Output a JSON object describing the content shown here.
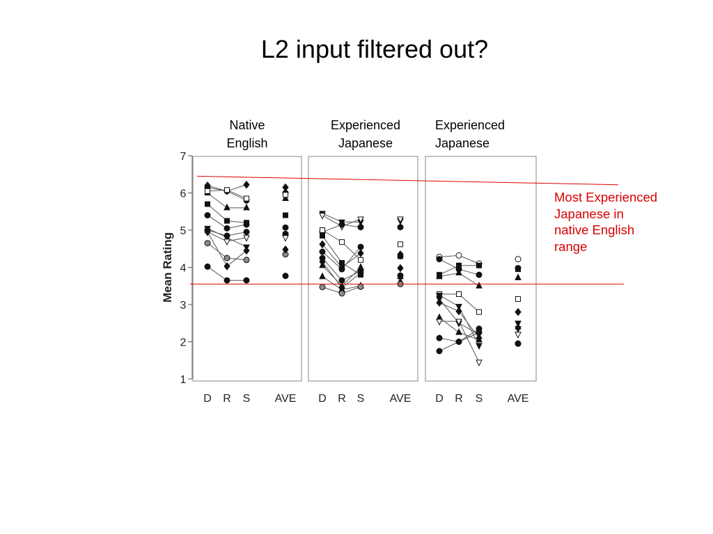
{
  "slide": {
    "title": "L2 input filtered out?",
    "annotation": "Most Experienced Japanese in native English range",
    "annotation_color": "#d90000"
  },
  "chart_data": {
    "type": "scatter",
    "ylabel": "Mean Rating",
    "ylim": [
      1,
      7
    ],
    "yticks": [
      1,
      2,
      3,
      4,
      5,
      6,
      7
    ],
    "grid": false,
    "reference_lines": [
      {
        "color": "#e00000",
        "from": [
          "D",
          6.45
        ],
        "to": [
          "AVE",
          6.22
        ]
      },
      {
        "color": "#e00000",
        "from": [
          "D",
          3.55
        ],
        "to": [
          "AVE",
          3.55
        ]
      }
    ],
    "panels": [
      {
        "title": "Native English",
        "categories": [
          "D",
          "R",
          "S",
          "AVE"
        ],
        "subjects": [
          {
            "marker": "diamond",
            "fill": "black",
            "values": [
              6.2,
              6.05,
              6.22,
              6.15
            ]
          },
          {
            "marker": "circle",
            "fill": "black",
            "values": [
              6.15,
              6.05,
              5.8,
              6.0
            ]
          },
          {
            "marker": "triangle-up",
            "fill": "black",
            "values": [
              6.0,
              5.6,
              5.6,
              5.85
            ]
          },
          {
            "marker": "square",
            "fill": "black",
            "values": [
              5.7,
              5.25,
              5.2,
              5.4
            ]
          },
          {
            "marker": "circle",
            "fill": "black",
            "values": [
              5.4,
              5.05,
              5.15,
              5.07
            ]
          },
          {
            "marker": "triangle-down",
            "fill": "black",
            "values": [
              5.05,
              4.8,
              4.55,
              4.85
            ]
          },
          {
            "marker": "circle",
            "fill": "black",
            "values": [
              5.0,
              4.85,
              4.95,
              4.9
            ]
          },
          {
            "marker": "triangle-down",
            "fill": "white",
            "values": [
              4.95,
              4.7,
              4.8,
              4.8
            ]
          },
          {
            "marker": "circle",
            "fill": "gray",
            "values": [
              4.65,
              4.25,
              4.2,
              4.35
            ]
          },
          {
            "marker": "diamond",
            "fill": "black",
            "values": [
              4.95,
              4.03,
              4.45,
              4.48
            ]
          },
          {
            "marker": "circle",
            "fill": "black",
            "values": [
              4.02,
              3.65,
              3.65,
              3.77
            ]
          },
          {
            "marker": "square",
            "fill": "white",
            "values": [
              6.05,
              6.08,
              5.85,
              5.95
            ]
          }
        ]
      },
      {
        "title": "Experienced Japanese",
        "categories": [
          "D",
          "R",
          "S",
          "AVE"
        ],
        "subjects": [
          {
            "marker": "triangle-down",
            "fill": "black",
            "values": [
              5.45,
              5.22,
              5.22,
              5.25
            ]
          },
          {
            "marker": "triangle-down",
            "fill": "white",
            "values": [
              5.4,
              5.1,
              5.3,
              5.3
            ]
          },
          {
            "marker": "circle",
            "fill": "black",
            "values": [
              4.95,
              5.15,
              5.08,
              5.08
            ]
          },
          {
            "marker": "square",
            "fill": "white",
            "values": [
              5.0,
              4.68,
              4.2,
              4.62
            ]
          },
          {
            "marker": "square",
            "fill": "black",
            "values": [
              4.85,
              4.12,
              3.8,
              4.3
            ]
          },
          {
            "marker": "diamond",
            "fill": "black",
            "values": [
              4.62,
              4.0,
              4.38,
              4.35
            ]
          },
          {
            "marker": "circle",
            "fill": "black",
            "values": [
              4.42,
              3.95,
              4.55,
              4.3
            ]
          },
          {
            "marker": "circle",
            "fill": "black",
            "values": [
              4.25,
              3.65,
              3.9,
              3.78
            ]
          },
          {
            "marker": "triangle-up",
            "fill": "black",
            "values": [
              4.05,
              3.5,
              4.0,
              3.75
            ]
          },
          {
            "marker": "diamond",
            "fill": "black",
            "values": [
              4.15,
              3.45,
              3.85,
              3.98
            ]
          },
          {
            "marker": "triangle-up",
            "fill": "black",
            "values": [
              3.75,
              3.4,
              3.5,
              3.62
            ]
          },
          {
            "marker": "circle",
            "fill": "gray",
            "values": [
              3.47,
              3.3,
              3.48,
              3.55
            ]
          }
        ]
      },
      {
        "title": "Experienced Japanese",
        "categories": [
          "D",
          "R",
          "S",
          "AVE"
        ],
        "subjects": [
          {
            "marker": "circle",
            "fill": "white",
            "values": [
              4.28,
              4.32,
              4.1,
              4.22
            ]
          },
          {
            "marker": "circle",
            "fill": "black",
            "values": [
              4.22,
              3.95,
              3.8,
              3.98
            ]
          },
          {
            "marker": "square",
            "fill": "black",
            "values": [
              3.8,
              4.05,
              4.05,
              3.95
            ]
          },
          {
            "marker": "triangle-up",
            "fill": "black",
            "values": [
              3.75,
              3.85,
              3.5,
              3.72
            ]
          },
          {
            "marker": "square",
            "fill": "white",
            "values": [
              3.28,
              3.28,
              2.8,
              3.15
            ]
          },
          {
            "marker": "triangle-down",
            "fill": "black",
            "values": [
              3.15,
              2.5,
              2.2,
              2.5
            ]
          },
          {
            "marker": "diamond",
            "fill": "black",
            "values": [
              3.05,
              2.82,
              2.1,
              2.8
            ]
          },
          {
            "marker": "triangle-up",
            "fill": "black",
            "values": [
              2.65,
              2.25,
              2.05,
              2.4
            ]
          },
          {
            "marker": "triangle-down",
            "fill": "white",
            "values": [
              2.55,
              2.55,
              1.45,
              2.2
            ]
          },
          {
            "marker": "circle",
            "fill": "black",
            "values": [
              2.1,
              2.0,
              2.35,
              1.95
            ]
          },
          {
            "marker": "circle",
            "fill": "black",
            "values": [
              1.75,
              2.0,
              2.25,
              1.95
            ]
          },
          {
            "marker": "triangle-down",
            "fill": "black",
            "values": [
              3.25,
              2.95,
              1.9,
              2.35
            ]
          }
        ]
      }
    ]
  }
}
